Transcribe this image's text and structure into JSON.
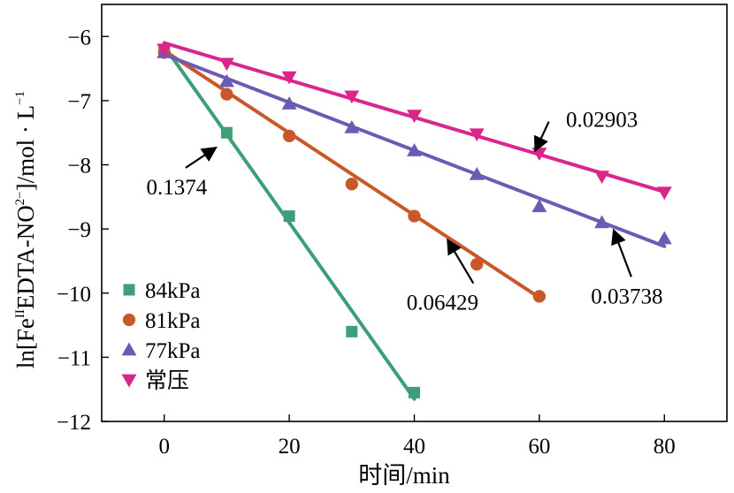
{
  "chart_data": {
    "type": "scatter",
    "xlabel": "时间/min",
    "ylabel_parts": [
      "ln[Fe",
      "II",
      "EDTA-NO",
      "2−",
      "]/mol · L",
      "−1"
    ],
    "xlim": [
      -10,
      90
    ],
    "ylim": [
      -12,
      -5.5
    ],
    "x_ticks": [
      0,
      20,
      40,
      60,
      80
    ],
    "y_ticks": [
      -6,
      -7,
      -8,
      -9,
      -10,
      -11,
      -12
    ],
    "x_tick_labels": [
      "0",
      "20",
      "40",
      "60",
      "80"
    ],
    "y_tick_labels": [
      "−6",
      "−7",
      "−8",
      "−9",
      "−10",
      "−11",
      "−12"
    ],
    "legend_position": "bottom-left",
    "series": [
      {
        "name": "84kPa",
        "marker": "square",
        "color": "#3d9e78",
        "x": [
          0,
          10,
          20,
          30,
          40
        ],
        "y": [
          -6.2,
          -7.5,
          -8.8,
          -10.6,
          -11.55
        ],
        "fit": [
          [
            0,
            -6.15
          ],
          [
            40,
            -11.65
          ]
        ]
      },
      {
        "name": "81kPa",
        "marker": "circle",
        "color": "#c8582a",
        "x": [
          0,
          10,
          20,
          30,
          40,
          50,
          60
        ],
        "y": [
          -6.25,
          -6.9,
          -7.55,
          -8.3,
          -8.8,
          -9.55,
          -10.05
        ],
        "fit": [
          [
            0,
            -6.22
          ],
          [
            60,
            -10.07
          ]
        ]
      },
      {
        "name": "77kPa",
        "marker": "triangle-up",
        "color": "#6b5bb5",
        "x": [
          0,
          10,
          20,
          30,
          40,
          50,
          60,
          70,
          80
        ],
        "y": [
          -6.25,
          -6.7,
          -7.05,
          -7.42,
          -7.78,
          -8.15,
          -8.65,
          -8.9,
          -9.15
        ],
        "fit": [
          [
            0,
            -6.28
          ],
          [
            80,
            -9.27
          ]
        ]
      },
      {
        "name": "常压",
        "marker": "triangle-down",
        "color": "#d9258c",
        "x": [
          0,
          10,
          20,
          30,
          40,
          50,
          60,
          70,
          80
        ],
        "y": [
          -6.2,
          -6.42,
          -6.63,
          -6.93,
          -7.23,
          -7.52,
          -7.82,
          -8.18,
          -8.43
        ],
        "fit": [
          [
            0,
            -6.1
          ],
          [
            80,
            -8.42
          ]
        ]
      }
    ],
    "annotations": [
      {
        "text": "0.1374",
        "target": [
          8,
          -7.75
        ],
        "label_at": [
          2,
          -8.35
        ]
      },
      {
        "text": "0.06429",
        "target": [
          45.5,
          -9.2
        ],
        "label_at": [
          44.5,
          -10.15
        ]
      },
      {
        "text": "0.03738",
        "target": [
          72,
          -9.05
        ],
        "label_at": [
          74,
          -10.05
        ]
      },
      {
        "text": "0.02903",
        "target": [
          59.5,
          -7.75
        ],
        "label_at": [
          70,
          -7.3
        ]
      }
    ]
  }
}
